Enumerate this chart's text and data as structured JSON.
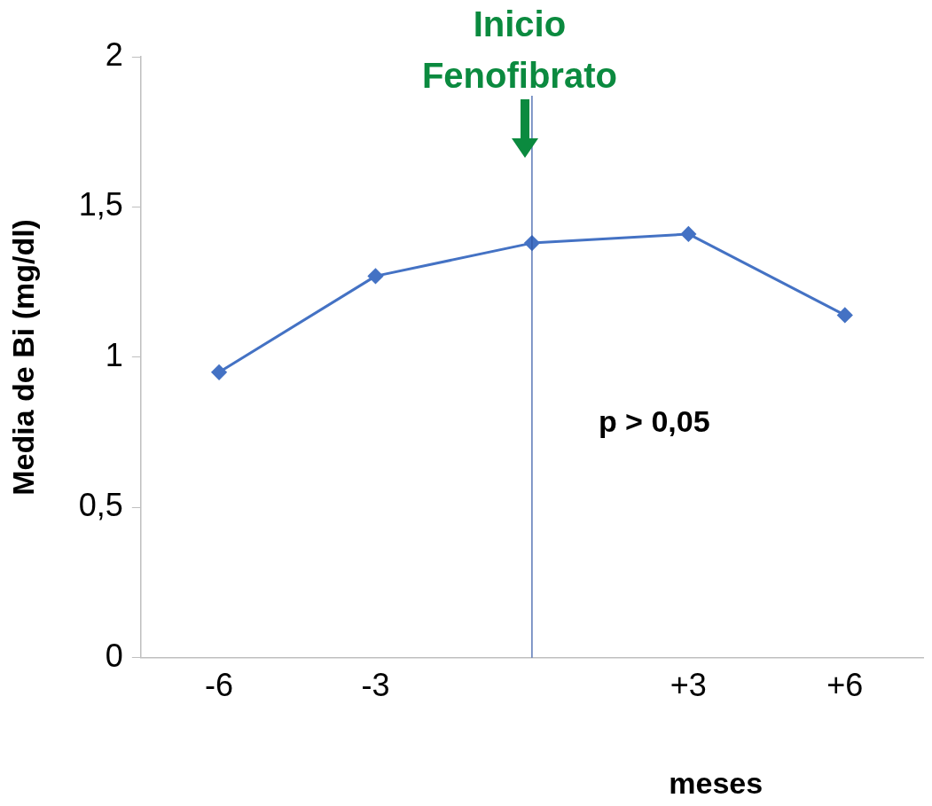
{
  "chart_data": {
    "type": "line",
    "xlabel": "meses",
    "ylabel": "Media de Bi (mg/dl)",
    "x": [
      -6,
      -3,
      0,
      3,
      6
    ],
    "xlim": [
      -7.5,
      7.5
    ],
    "xticks": [
      {
        "value": -6,
        "label": "-6"
      },
      {
        "value": -3,
        "label": "-3"
      },
      {
        "value": 3,
        "label": "+3"
      },
      {
        "value": 6,
        "label": "+6"
      }
    ],
    "ylim": [
      0,
      2
    ],
    "yticks": [
      0,
      {
        "value": 0.5,
        "label": "0,5"
      },
      1,
      {
        "value": 1.5,
        "label": "1,5"
      },
      2
    ],
    "series": [
      {
        "color": "#4472c4",
        "values": [
          0.95,
          1.27,
          1.38,
          1.41,
          1.14
        ]
      }
    ],
    "ref_lines": [
      {
        "axis": "x",
        "value": 0,
        "label": "Inicio Fenofibrato",
        "color": "#2f55a4"
      }
    ],
    "annotations": [
      "p > 0,05"
    ],
    "marker": "diamond",
    "line_style": "solid",
    "grid": false,
    "legend": false
  }
}
